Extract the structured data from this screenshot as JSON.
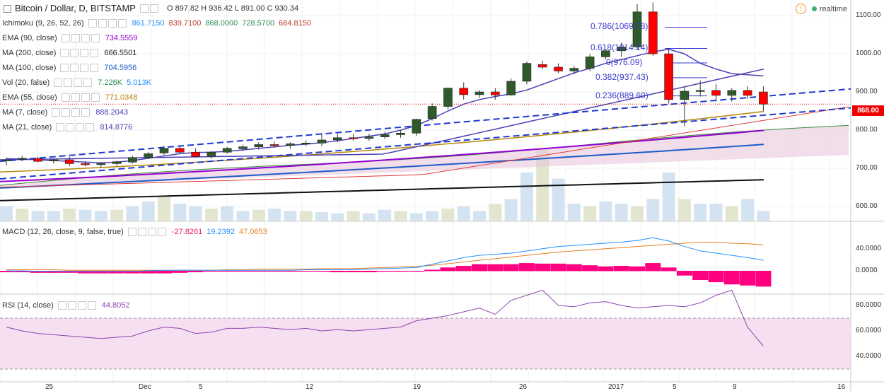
{
  "title": {
    "symbol": "Bitcoin / Dollar, D, BITSTAMP",
    "ohlc": "O 897.82  H 936.42  L 891.00  C 930.34"
  },
  "status": {
    "label": "realtime",
    "warn": "!"
  },
  "indicators": [
    {
      "name": "Ichimoku (9, 26, 52, 26)",
      "values": [
        {
          "v": "861.7150",
          "c": "#1e90ff"
        },
        {
          "v": "839.7100",
          "c": "#c0392b"
        },
        {
          "v": "868.0000",
          "c": "#2e8b57"
        },
        {
          "v": "728.5700",
          "c": "#2e8b57"
        },
        {
          "v": "684.8150",
          "c": "#c0392b"
        }
      ]
    },
    {
      "name": "EMA (90, close)",
      "values": [
        {
          "v": "734.5559",
          "c": "#9400d3"
        }
      ]
    },
    {
      "name": "MA (200, close)",
      "values": [
        {
          "v": "666.5501",
          "c": "#222222"
        }
      ]
    },
    {
      "name": "MA (100, close)",
      "values": [
        {
          "v": "704.5956",
          "c": "#1e5cc8"
        }
      ]
    },
    {
      "name": "Vol (20, false)",
      "values": [
        {
          "v": "7.226K",
          "c": "#2e8b57"
        },
        {
          "v": "5.013K",
          "c": "#1e90ff"
        }
      ]
    },
    {
      "name": "EMA (55, close)",
      "values": [
        {
          "v": "771.0348",
          "c": "#b8860b"
        }
      ]
    },
    {
      "name": "MA (7, close)",
      "values": [
        {
          "v": "888.2043",
          "c": "#4b3fb5"
        }
      ]
    },
    {
      "name": "MA (21, close)",
      "values": [
        {
          "v": "814.8776",
          "c": "#4b3fb5"
        }
      ]
    }
  ],
  "macd": {
    "name": "MACD (12, 26, close, 9, false, true)",
    "values": [
      {
        "v": "-27.8261",
        "c": "#e91e63"
      },
      {
        "v": "19.2392",
        "c": "#1e90ff"
      },
      {
        "v": "47.0653",
        "c": "#e67e22"
      }
    ]
  },
  "rsi": {
    "name": "RSI (14, close)",
    "values": [
      {
        "v": "44.8052",
        "c": "#8e44ad"
      }
    ]
  },
  "price_axis": [
    "1100.00",
    "1000.00",
    "900.00",
    "800.00",
    "700.00",
    "600.00"
  ],
  "macd_axis": [
    "40.0000",
    "0.0000"
  ],
  "rsi_axis": [
    "80.0000",
    "60.0000",
    "40.0000"
  ],
  "last_price": "868.00",
  "time_axis": [
    "25",
    "Dec",
    "5",
    "12",
    "19",
    "26",
    "2017",
    "5",
    "9",
    "16"
  ],
  "fib_levels": [
    "0.786(1069.78)",
    "0.618(1014.14)",
    "0(976.09)",
    "0.382(937.43)",
    "0.236(889.60)"
  ],
  "colors": {
    "up": "#2f5a2b",
    "down": "#ff0000",
    "grid": "#f0f0f0"
  },
  "chart_data": {
    "type": "candlestick",
    "candles": [
      [
        720,
        728,
        708,
        722
      ],
      [
        725,
        732,
        718,
        726
      ],
      [
        725,
        730,
        715,
        718
      ],
      [
        719,
        725,
        712,
        722
      ],
      [
        722,
        730,
        705,
        712
      ],
      [
        712,
        718,
        705,
        709
      ],
      [
        710,
        716,
        702,
        712
      ],
      [
        712,
        720,
        706,
        717
      ],
      [
        716,
        732,
        712,
        728
      ],
      [
        728,
        742,
        724,
        738
      ],
      [
        740,
        758,
        735,
        752
      ],
      [
        752,
        760,
        738,
        742
      ],
      [
        742,
        752,
        728,
        731
      ],
      [
        731,
        745,
        725,
        742
      ],
      [
        742,
        756,
        738,
        752
      ],
      [
        751,
        762,
        745,
        756
      ],
      [
        756,
        768,
        749,
        762
      ],
      [
        762,
        770,
        754,
        760
      ],
      [
        760,
        768,
        752,
        764
      ],
      [
        764,
        773,
        758,
        766
      ],
      [
        766,
        790,
        758,
        774
      ],
      [
        774,
        790,
        768,
        780
      ],
      [
        780,
        790,
        772,
        778
      ],
      [
        778,
        790,
        772,
        782
      ],
      [
        782,
        795,
        776,
        788
      ],
      [
        788,
        800,
        780,
        792
      ],
      [
        792,
        830,
        785,
        828
      ],
      [
        830,
        870,
        825,
        862
      ],
      [
        862,
        912,
        855,
        910
      ],
      [
        910,
        925,
        880,
        893
      ],
      [
        893,
        905,
        885,
        900
      ],
      [
        900,
        910,
        880,
        892
      ],
      [
        892,
        935,
        890,
        928
      ],
      [
        928,
        980,
        920,
        975
      ],
      [
        972,
        982,
        960,
        965
      ],
      [
        965,
        975,
        950,
        955
      ],
      [
        955,
        968,
        946,
        962
      ],
      [
        962,
        1000,
        955,
        992
      ],
      [
        992,
        1012,
        985,
        1008
      ],
      [
        1008,
        1030,
        992,
        1018
      ],
      [
        1018,
        1130,
        1010,
        1110
      ],
      [
        1110,
        1135,
        995,
        1000
      ],
      [
        1000,
        1015,
        870,
        880
      ],
      [
        880,
        915,
        810,
        902
      ],
      [
        902,
        930,
        888,
        904
      ],
      [
        904,
        920,
        875,
        891
      ],
      [
        891,
        910,
        875,
        904
      ],
      [
        904,
        915,
        882,
        891
      ],
      [
        900,
        915,
        850,
        868
      ]
    ],
    "ylim": [
      570,
      1130
    ]
  }
}
